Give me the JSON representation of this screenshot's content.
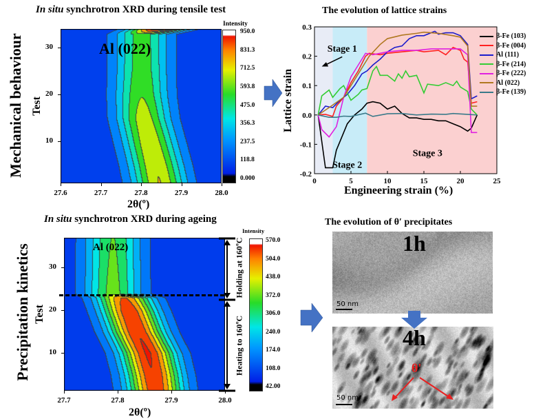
{
  "panels": {
    "row_labels": [
      "Mechanical behaviour",
      "Precipitation kinetics"
    ]
  },
  "chart_data": [
    {
      "type": "heatmap",
      "title_italic": "In situ",
      "title_rest": " synchrotron XRD during tensile test",
      "xlabel": "2θ(º)",
      "ylabel": "Test",
      "xlim": [
        27.6,
        28.0
      ],
      "ylim": [
        1,
        34
      ],
      "xticks": [
        "27.6",
        "27.7",
        "27.8",
        "27.9",
        "28.0"
      ],
      "yticks": [
        "10",
        "20",
        "30"
      ],
      "annotation": "Al (022)",
      "colorbar": {
        "label": "Intensity",
        "range": [
          0,
          950
        ],
        "ticks": [
          "950.0",
          "831.3",
          "712.5",
          "593.8",
          "475.0",
          "356.3",
          "237.5",
          "118.8",
          "0.000"
        ]
      },
      "peak_center": {
        "test": [
          1,
          5,
          10,
          15,
          20,
          25,
          30,
          33,
          34
        ],
        "two_theta": [
          27.845,
          27.835,
          27.82,
          27.805,
          27.8,
          27.8,
          27.8,
          27.8,
          27.84
        ]
      },
      "peak_intensity": {
        "test": [
          1,
          5,
          10,
          15,
          20,
          25,
          30,
          33,
          34
        ],
        "value": [
          650,
          640,
          620,
          590,
          520,
          480,
          470,
          470,
          950
        ]
      }
    },
    {
      "type": "line",
      "title": "The evolution of lattice strains",
      "xlabel": "Engineering strain (%)",
      "ylabel": "Lattice strain",
      "xlim": [
        0,
        25
      ],
      "ylim": [
        -0.2,
        0.3
      ],
      "xticks": [
        "0",
        "5",
        "10",
        "15",
        "20",
        "25"
      ],
      "yticks": [
        "-0.2",
        "-0.1",
        "0.0",
        "0.1",
        "0.2",
        "0.3"
      ],
      "legend_position": "right",
      "stages": [
        {
          "label": "Stage 1",
          "range": [
            0,
            2.5
          ],
          "color": "#e8ecf6"
        },
        {
          "label": "Stage 2",
          "range": [
            2.5,
            7.2
          ],
          "color": "#c8ecf8"
        },
        {
          "label": "Stage 3",
          "range": [
            7.2,
            25
          ],
          "color": "#fbd0d0"
        }
      ],
      "series": [
        {
          "name": "β-Fe (103)",
          "color": "#000000",
          "x": [
            0.5,
            1.5,
            2.5,
            3,
            3.5,
            4.5,
            5.5,
            6.5,
            7.2,
            8,
            9,
            10,
            11,
            12,
            13,
            14,
            15,
            16,
            17,
            18,
            19,
            20,
            21,
            21.5,
            22.3
          ],
          "y": [
            0,
            -0.18,
            -0.18,
            -0.12,
            -0.09,
            -0.03,
            0,
            0.02,
            0.04,
            0.045,
            0.04,
            0.02,
            0.03,
            0.005,
            -0.01,
            -0.01,
            -0.015,
            -0.015,
            -0.02,
            -0.02,
            -0.03,
            -0.04,
            -0.055,
            -0.045,
            0
          ]
        },
        {
          "name": "β-Fe (004)",
          "color": "#ff2020",
          "x": [
            0.5,
            1.5,
            2.5,
            3,
            4,
            5,
            6,
            7,
            7.5,
            9,
            10,
            12,
            14,
            15,
            17,
            18,
            19,
            20,
            20.5,
            21,
            21.5,
            22.3
          ],
          "y": [
            0,
            0.002,
            -0.005,
            0.03,
            0.06,
            0.11,
            0.15,
            0.2,
            0.21,
            0.205,
            0.21,
            0.215,
            0.22,
            0.215,
            0.22,
            0.205,
            0.23,
            0.22,
            0.19,
            0.18,
            0.04,
            0.045
          ]
        },
        {
          "name": "Al (111)",
          "color": "#1a1acc",
          "x": [
            0.5,
            1.5,
            2.5,
            3.5,
            4.5,
            5.5,
            6.5,
            7.2,
            8,
            9,
            10,
            11,
            12,
            13,
            14,
            15,
            16,
            16.5,
            17,
            18,
            19,
            20,
            21,
            21.5,
            22.3
          ],
          "y": [
            0,
            0.03,
            0.025,
            0.05,
            0.07,
            0.1,
            0.14,
            0.15,
            0.17,
            0.19,
            0.215,
            0.23,
            0.235,
            0.26,
            0.27,
            0.27,
            0.28,
            0.285,
            0.275,
            0.28,
            0.28,
            0.27,
            0.24,
            0.055,
            0.065
          ]
        },
        {
          "name": "β-Fe (214)",
          "color": "#33cc33",
          "x": [
            0.5,
            1,
            2,
            2.5,
            3.5,
            4,
            5,
            6,
            6.5,
            7.2,
            8,
            8.5,
            9,
            10,
            11,
            11.5,
            12,
            12.5,
            13,
            14,
            15,
            15.5,
            17,
            18,
            19,
            19.5,
            20,
            21,
            21.5,
            22.3
          ],
          "y": [
            0,
            0.065,
            0.085,
            0.06,
            0.09,
            0.1,
            0.05,
            0.07,
            0.085,
            0.09,
            0.15,
            0.165,
            0.135,
            0.135,
            0.115,
            0.14,
            0.125,
            0.15,
            0.13,
            0.135,
            0.075,
            0.105,
            0.1,
            0.11,
            0.1,
            0.115,
            0.095,
            0.08,
            0.02,
            0
          ]
        },
        {
          "name": "β-Fe (222)",
          "color": "#e020e0",
          "x": [
            0.5,
            1,
            2,
            3,
            4,
            5,
            6,
            7,
            8,
            9,
            10,
            12,
            14,
            16,
            18,
            20,
            21,
            21.5,
            22.3
          ],
          "y": [
            0,
            -0.05,
            -0.075,
            -0.04,
            0.06,
            0.13,
            0.17,
            0.21,
            0.205,
            0.21,
            0.215,
            0.22,
            0.22,
            0.225,
            0.225,
            0.225,
            0.205,
            -0.06,
            -0.06
          ]
        },
        {
          "name": "Al (022)",
          "color": "#b07820",
          "x": [
            0.5,
            2,
            4,
            6,
            7.5,
            9,
            10,
            12,
            14,
            15,
            17,
            19,
            20,
            21,
            21.5,
            22.3
          ],
          "y": [
            0,
            0.025,
            0.06,
            0.14,
            0.2,
            0.24,
            0.26,
            0.272,
            0.278,
            0.282,
            0.278,
            0.27,
            0.265,
            0.235,
            0.03,
            0.03
          ]
        },
        {
          "name": "β-Fe (139)",
          "color": "#3a7a8a",
          "x": [
            0.5,
            2,
            3,
            4,
            5,
            7,
            8,
            10,
            12,
            14,
            16,
            18,
            19,
            22.3
          ],
          "y": [
            0,
            -0.008,
            -0.008,
            -0.004,
            -0.005,
            0.006,
            -0.005,
            0.004,
            0.005,
            0,
            0.003,
            0.002,
            0.005,
            0
          ]
        }
      ]
    },
    {
      "type": "heatmap",
      "title_italic": "In situ",
      "title_rest": " synchrotron XRD during ageing",
      "xlabel": "2θ(º)",
      "ylabel": "Test",
      "xlim": [
        27.7,
        28.0
      ],
      "ylim": [
        1,
        37
      ],
      "xticks": [
        "27.7",
        "27.8",
        "27.9",
        "28.0"
      ],
      "yticks": [
        "10",
        "20",
        "30"
      ],
      "annotation": "Al (022)",
      "dashed_line_test": 23.5,
      "stage_labels": [
        "Holding at 160ºC",
        "Heating to 160ºC"
      ],
      "colorbar": {
        "label": "Intensity",
        "range": [
          42,
          570
        ],
        "ticks": [
          "570.0",
          "504.0",
          "438.0",
          "372.0",
          "306.0",
          "240.0",
          "174.0",
          "108.0",
          "42.00"
        ]
      },
      "peak_center": {
        "test": [
          1,
          5,
          10,
          15,
          20,
          23,
          24,
          30,
          37
        ],
        "two_theta": [
          27.87,
          27.865,
          27.855,
          27.835,
          27.82,
          27.81,
          27.79,
          27.79,
          27.79
        ]
      },
      "peak_intensity": {
        "test": [
          1,
          5,
          10,
          15,
          20,
          23,
          24,
          30,
          37
        ],
        "value": [
          520,
          530,
          540,
          530,
          520,
          480,
          320,
          310,
          300
        ]
      }
    }
  ],
  "tem": {
    "title": "The evolution of θ′ precipitates",
    "images": [
      {
        "label": "1h",
        "scale_bar": "50 nm"
      },
      {
        "label": "4h",
        "scale_bar": "50 nm",
        "annotation": "θ'"
      }
    ]
  },
  "colors": {
    "arrow": "#4472c4",
    "annotation_red": "#e82020"
  }
}
